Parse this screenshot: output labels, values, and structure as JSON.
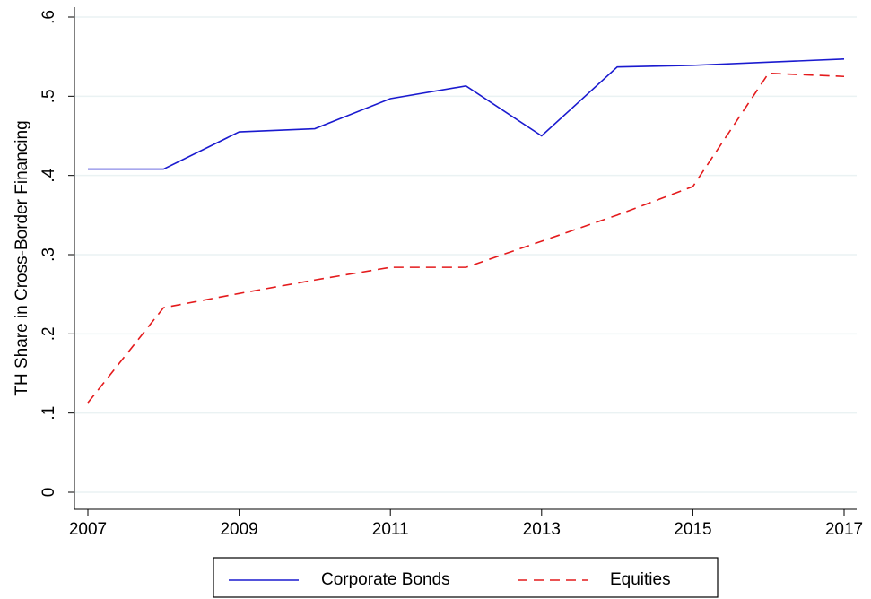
{
  "chart_data": {
    "type": "line",
    "y_label": "TH Share in Cross-Border Financing",
    "x": [
      2007,
      2008,
      2009,
      2010,
      2011,
      2012,
      2013,
      2014,
      2015,
      2016,
      2017
    ],
    "series": [
      {
        "name": "Corporate Bonds",
        "color": "#1a1acf",
        "dash": false,
        "values": [
          0.408,
          0.408,
          0.455,
          0.459,
          0.497,
          0.513,
          0.45,
          0.537,
          0.539,
          0.543,
          0.547
        ]
      },
      {
        "name": "Equities",
        "color": "#e41a1c",
        "dash": true,
        "values": [
          0.113,
          0.233,
          0.251,
          0.268,
          0.284,
          0.284,
          0.317,
          0.35,
          0.386,
          0.529,
          0.525
        ]
      }
    ],
    "xlim": [
      2007,
      2017
    ],
    "xticks": [
      2007,
      2009,
      2011,
      2013,
      2015,
      2017
    ],
    "ylim": [
      0,
      0.6
    ],
    "yticks": [
      0,
      {
        "value": 0.1,
        "label": ".1"
      },
      {
        "value": 0.2,
        "label": ".2"
      },
      {
        "value": 0.3,
        "label": ".3"
      },
      {
        "value": 0.4,
        "label": ".4"
      },
      {
        "value": 0.5,
        "label": ".5"
      },
      {
        "value": 0.6,
        "label": ".6"
      }
    ],
    "grid": true,
    "legend": "bottom"
  }
}
